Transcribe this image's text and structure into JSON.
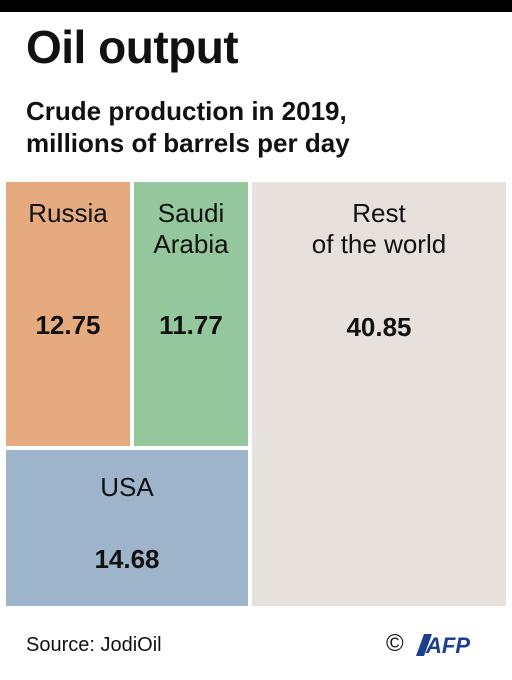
{
  "title": "Oil output",
  "subtitle_lines": [
    "Crude production in 2019,",
    "millions of barrels per day"
  ],
  "source": "Source: JodiOil",
  "copyright_symbol": "©",
  "logo_text": "AFP",
  "colors": {
    "russia": "#E5AB7F",
    "saudi_arabia": "#95C79D",
    "usa": "#9DB4CA",
    "rest_of_world": "#E7E1DD"
  },
  "chart_data": {
    "type": "treemap",
    "title": "Oil output",
    "subtitle": "Crude production in 2019, millions of barrels per day",
    "unit": "millions of barrels per day",
    "categories": [
      "Russia",
      "Saudi Arabia",
      "USA",
      "Rest of the world"
    ],
    "values": [
      12.75,
      11.77,
      14.68,
      40.85
    ],
    "labels": {
      "russia": {
        "lines": [
          "Russia"
        ],
        "value": "12.75"
      },
      "saudi_arabia": {
        "lines": [
          "Saudi",
          "Arabia"
        ],
        "value": "11.77"
      },
      "usa": {
        "lines": [
          "USA"
        ],
        "value": "14.68"
      },
      "rest_of_world": {
        "lines": [
          "Rest",
          "of the world"
        ],
        "value": "40.85"
      }
    }
  }
}
